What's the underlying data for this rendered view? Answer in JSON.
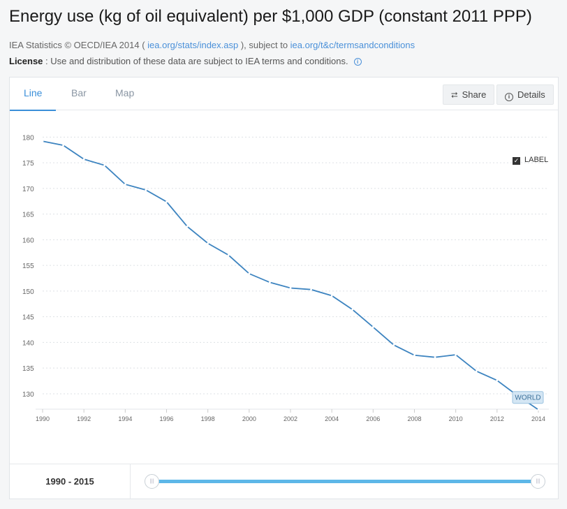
{
  "header": {
    "title": "Energy use (kg of oil equivalent) per $1,000 GDP (constant 2011 PPP)",
    "source_prefix": "IEA Statistics © OECD/IEA 2014 ( ",
    "source_link1": "iea.org/stats/index.asp",
    "source_mid": " ), subject to ",
    "source_link2": "iea.org/t&c/termsandconditions",
    "license_label": "License",
    "license_text": " : Use and distribution of these data are subject to IEA terms and conditions."
  },
  "tabs": [
    {
      "label": "Line",
      "active": true
    },
    {
      "label": "Bar",
      "active": false
    },
    {
      "label": "Map",
      "active": false
    }
  ],
  "toolbar": {
    "share_label": "Share",
    "details_label": "Details"
  },
  "legend": {
    "label_toggle": "LABEL",
    "checked": true
  },
  "footer": {
    "range_label": "1990 - 2015"
  },
  "colors": {
    "line": "#3d84c0",
    "accent": "#3a8fd9",
    "slider": "#5db7e8"
  },
  "chart_data": {
    "type": "line",
    "title": "Energy use (kg of oil equivalent) per $1,000 GDP (constant 2011 PPP)",
    "xlabel": "",
    "ylabel": "",
    "ylim": [
      127,
      181
    ],
    "yticks": [
      130,
      135,
      140,
      145,
      150,
      155,
      160,
      165,
      170,
      175,
      180
    ],
    "xticks": [
      1990,
      1992,
      1994,
      1996,
      1998,
      2000,
      2002,
      2004,
      2006,
      2008,
      2010,
      2012,
      2014
    ],
    "grid": "horizontal-dashed",
    "series": [
      {
        "name": "WORLD",
        "x": [
          1990,
          1991,
          1992,
          1993,
          1994,
          1995,
          1996,
          1997,
          1998,
          1999,
          2000,
          2001,
          2002,
          2003,
          2004,
          2005,
          2006,
          2007,
          2008,
          2009,
          2010,
          2011,
          2012,
          2013,
          2014
        ],
        "values": [
          179.2,
          178.4,
          175.7,
          174.5,
          170.8,
          169.7,
          167.4,
          162.6,
          159.3,
          157.0,
          153.4,
          151.7,
          150.6,
          150.3,
          149.1,
          146.4,
          143.0,
          139.5,
          137.5,
          137.1,
          137.6,
          134.4,
          132.6,
          129.6,
          126.9
        ]
      }
    ]
  }
}
